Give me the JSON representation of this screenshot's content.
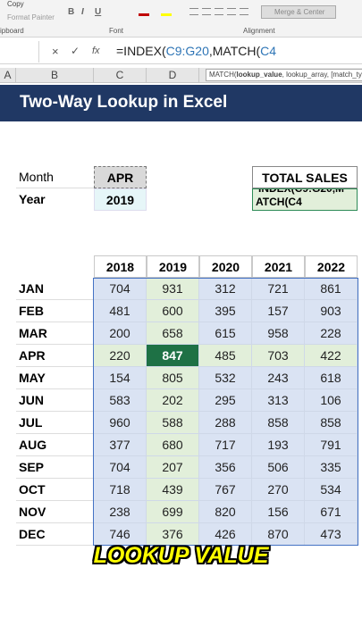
{
  "ribbon": {
    "clipboard": [
      "Copy",
      "Format Painter"
    ],
    "clipboard_label": "ipboard",
    "font_buttons": [
      "B",
      "I",
      "U"
    ],
    "font_label": "Font",
    "merge": "Merge & Center",
    "alignment_label": "Alignment"
  },
  "formula_bar": {
    "cancel": "×",
    "enter": "✓",
    "fx": "fx",
    "formula": [
      "=INDEX(",
      "C9:G20",
      ",MATCH(",
      "C4"
    ]
  },
  "tooltip": [
    "MATCH(",
    "lookup_value",
    ", lookup_array, [match_type"
  ],
  "column_headers": [
    "A",
    "B",
    "C",
    "D"
  ],
  "title": "Two-Way Lookup in Excel",
  "inputs": {
    "month_label": "Month",
    "month": "APR",
    "year_label": "Year",
    "year": "2019"
  },
  "result": {
    "label": "TOTAL SALES",
    "lines": [
      "INDEX(C9:G20,M",
      "ATCH(C4"
    ]
  },
  "table": {
    "header": [
      "2018",
      "2019",
      "2020",
      "2021",
      "2022"
    ],
    "rows": [
      [
        "JAN",
        "704",
        "931",
        "312",
        "721",
        "861"
      ],
      [
        "FEB",
        "481",
        "600",
        "395",
        "157",
        "903"
      ],
      [
        "MAR",
        "200",
        "658",
        "615",
        "958",
        "228"
      ],
      [
        "APR",
        "220",
        "847",
        "485",
        "703",
        "422"
      ],
      [
        "MAY",
        "154",
        "805",
        "532",
        "243",
        "618"
      ],
      [
        "JUN",
        "583",
        "202",
        "295",
        "313",
        "106"
      ],
      [
        "JUL",
        "960",
        "588",
        "288",
        "858",
        "858"
      ],
      [
        "AUG",
        "377",
        "680",
        "717",
        "193",
        "791"
      ],
      [
        "SEP",
        "704",
        "207",
        "356",
        "506",
        "335"
      ],
      [
        "OCT",
        "718",
        "439",
        "767",
        "270",
        "534"
      ],
      [
        "NOV",
        "238",
        "699",
        "820",
        "156",
        "671"
      ],
      [
        "DEC",
        "746",
        "376",
        "426",
        "870",
        "473"
      ]
    ]
  },
  "caption": "LOOKUP VALUE"
}
